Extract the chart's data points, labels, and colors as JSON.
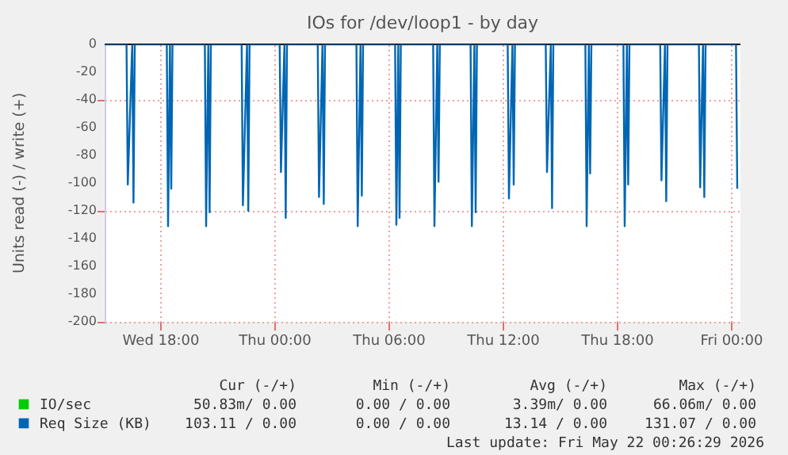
{
  "chart_data": {
    "type": "line",
    "title": "IOs for /dev/loop1 - by day",
    "ylabel": "Units read (-) / write (+)",
    "xlim": [
      "2026-05-20T15:05",
      "2026-05-22T00:30"
    ],
    "xticks": [
      {
        "value": "2026-05-20T18:00",
        "label": "Wed 18:00"
      },
      {
        "value": "2026-05-21T00:00",
        "label": "Thu 00:00"
      },
      {
        "value": "2026-05-21T06:00",
        "label": "Thu 06:00"
      },
      {
        "value": "2026-05-21T12:00",
        "label": "Thu 12:00"
      },
      {
        "value": "2026-05-21T18:00",
        "label": "Thu 18:00"
      },
      {
        "value": "2026-05-22T00:00",
        "label": "Fri 00:00"
      }
    ],
    "ylim": [
      -200,
      0
    ],
    "yticks": [
      -200,
      -180,
      -160,
      -140,
      -120,
      -100,
      -80,
      -60,
      -40,
      -20,
      0
    ],
    "grid": true,
    "legend": "bottom left",
    "marker": "none",
    "line_style": "solid",
    "ref_lines": [
      {
        "axis": "y",
        "value": 0,
        "color": "#000000"
      }
    ],
    "series": [
      {
        "name": "IO/sec",
        "color": "#00cc00",
        "values": [
          null
        ]
      },
      {
        "name": "Req Size (KB)",
        "color": "#0066b3",
        "x": [
          "2026-05-20T15:05",
          "2026-05-20T16:14",
          "2026-05-20T16:18",
          "2026-05-20T16:32",
          "2026-05-20T16:36",
          "2026-05-20T16:40",
          "2026-05-20T18:21",
          "2026-05-20T18:25",
          "2026-05-20T18:31",
          "2026-05-20T18:35",
          "2026-05-20T18:39",
          "2026-05-20T20:21",
          "2026-05-20T20:25",
          "2026-05-20T20:32",
          "2026-05-20T20:36",
          "2026-05-20T20:40",
          "2026-05-20T22:17",
          "2026-05-20T22:21",
          "2026-05-20T22:34",
          "2026-05-20T22:38",
          "2026-05-20T22:42",
          "2026-05-21T00:17",
          "2026-05-21T00:21",
          "2026-05-21T00:32",
          "2026-05-21T00:36",
          "2026-05-21T00:40",
          "2026-05-21T02:17",
          "2026-05-21T02:21",
          "2026-05-21T02:32",
          "2026-05-21T02:36",
          "2026-05-21T02:40",
          "2026-05-21T04:19",
          "2026-05-21T04:23",
          "2026-05-21T04:32",
          "2026-05-21T04:36",
          "2026-05-21T04:40",
          "2026-05-21T06:21",
          "2026-05-21T06:25",
          "2026-05-21T06:31",
          "2026-05-21T06:35",
          "2026-05-21T06:39",
          "2026-05-21T08:21",
          "2026-05-21T08:25",
          "2026-05-21T08:34",
          "2026-05-21T08:38",
          "2026-05-21T08:42",
          "2026-05-21T10:19",
          "2026-05-21T10:23",
          "2026-05-21T10:31",
          "2026-05-21T10:35",
          "2026-05-21T10:39",
          "2026-05-21T12:16",
          "2026-05-21T12:20",
          "2026-05-21T12:31",
          "2026-05-21T12:35",
          "2026-05-21T12:39",
          "2026-05-21T14:16",
          "2026-05-21T14:20",
          "2026-05-21T14:32",
          "2026-05-21T14:36",
          "2026-05-21T14:40",
          "2026-05-21T16:21",
          "2026-05-21T16:25",
          "2026-05-21T16:32",
          "2026-05-21T16:36",
          "2026-05-21T16:40",
          "2026-05-21T18:21",
          "2026-05-21T18:25",
          "2026-05-21T18:32",
          "2026-05-21T18:36",
          "2026-05-21T18:40",
          "2026-05-21T20:17",
          "2026-05-21T20:21",
          "2026-05-21T20:32",
          "2026-05-21T20:36",
          "2026-05-21T20:40",
          "2026-05-21T22:19",
          "2026-05-21T22:23",
          "2026-05-21T22:32",
          "2026-05-21T22:36",
          "2026-05-21T22:40",
          "2026-05-22T00:16",
          "2026-05-22T00:20"
        ],
        "values": [
          0,
          0,
          -101,
          0,
          -114,
          0,
          0,
          -131,
          0,
          -104,
          0,
          0,
          -131,
          0,
          -121,
          0,
          0,
          -116,
          0,
          -120,
          0,
          0,
          -92,
          0,
          -125,
          0,
          0,
          -110,
          0,
          -115,
          0,
          0,
          -131,
          0,
          -109,
          0,
          0,
          -130,
          0,
          -125,
          0,
          0,
          -131,
          0,
          -99,
          0,
          0,
          -131,
          0,
          -121,
          0,
          0,
          -111,
          0,
          -101,
          0,
          0,
          -92,
          0,
          -118,
          0,
          0,
          -131,
          0,
          -93,
          0,
          0,
          -131,
          0,
          -101,
          0,
          0,
          -98,
          0,
          -113,
          0,
          0,
          -103,
          0,
          -110,
          0,
          0,
          -104
        ]
      }
    ],
    "annotations": [
      "Cur (-/+)",
      "Min (-/+)",
      "Avg (-/+)",
      "Max (-/+)",
      "50.83m/ 0.00",
      "0.00 / 0.00",
      "3.39m/ 0.00",
      "66.06m/ 0.00",
      "103.11 / 0.00",
      "0.00 / 0.00",
      "13.14 / 0.00",
      "131.07 / 0.00",
      "Last update: Fri May 22 00:26:29 2026"
    ]
  }
}
